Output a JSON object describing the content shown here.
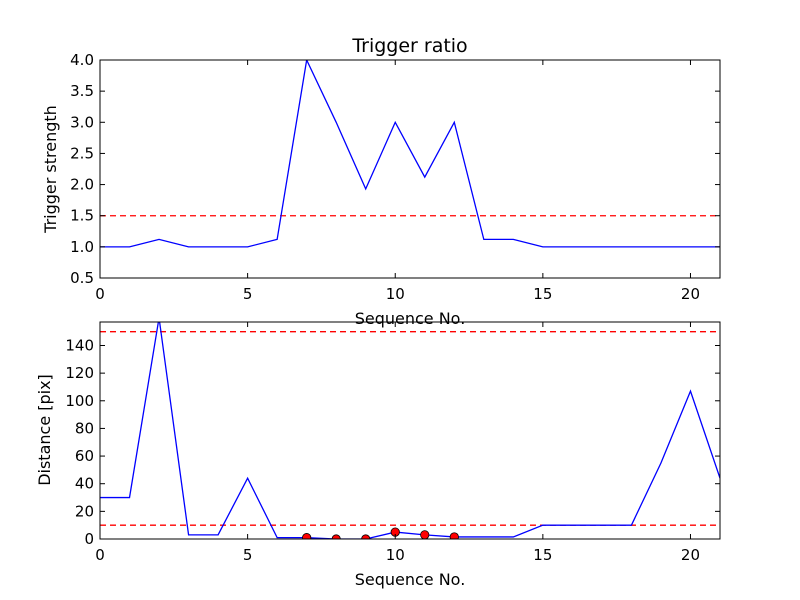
{
  "chart_data": [
    {
      "type": "line",
      "title": "Trigger ratio",
      "xlabel": "Sequence No.",
      "ylabel": "Trigger strength",
      "xlim": [
        0,
        21
      ],
      "ylim": [
        0.5,
        4.0
      ],
      "xticks": [
        0,
        5,
        10,
        15,
        20
      ],
      "yticks": [
        0.5,
        1.0,
        1.5,
        2.0,
        2.5,
        3.0,
        3.5,
        4.0
      ],
      "ytick_labels": [
        "0.5",
        "1.0",
        "1.5",
        "2.0",
        "2.5",
        "3.0",
        "3.5",
        "4.0"
      ],
      "grid": false,
      "colors": {
        "line": "#0000ff",
        "threshold": "#ff0000"
      },
      "series": [
        {
          "x": [
            0,
            1,
            2,
            3,
            4,
            5,
            6,
            7,
            8,
            9,
            10,
            11,
            12,
            13,
            14,
            15,
            16,
            17,
            18,
            19,
            20,
            21
          ],
          "values": [
            1.0,
            1.0,
            1.12,
            1.0,
            1.0,
            1.0,
            1.12,
            4.0,
            3.0,
            1.93,
            3.0,
            2.12,
            3.0,
            1.12,
            1.12,
            1.0,
            1.0,
            1.0,
            1.0,
            1.0,
            1.0,
            1.0
          ]
        }
      ],
      "hlines": [
        1.5
      ]
    },
    {
      "type": "line",
      "title": "",
      "xlabel": "Sequence No.",
      "ylabel": "Distance [pix]",
      "xlim": [
        0,
        21
      ],
      "ylim": [
        0,
        157
      ],
      "xticks": [
        0,
        5,
        10,
        15,
        20
      ],
      "yticks": [
        0,
        20,
        40,
        60,
        80,
        100,
        120,
        140
      ],
      "ytick_labels": [
        "0",
        "20",
        "40",
        "60",
        "80",
        "100",
        "120",
        "140"
      ],
      "grid": false,
      "colors": {
        "line": "#0000ff",
        "threshold": "#ff0000",
        "marker": "#ff0000"
      },
      "series": [
        {
          "x": [
            0,
            1,
            2,
            3,
            4,
            5,
            6,
            7,
            8,
            9,
            10,
            11,
            12,
            13,
            14,
            15,
            16,
            17,
            18,
            19,
            20,
            21
          ],
          "values": [
            30,
            30,
            160,
            3,
            3,
            44,
            1,
            1,
            0,
            0,
            5,
            3,
            1.5,
            1.5,
            1.5,
            10,
            10,
            10,
            10,
            55,
            107,
            44
          ]
        }
      ],
      "markers": {
        "x": [
          7,
          8,
          9,
          10,
          11,
          12
        ],
        "values": [
          1,
          0,
          0,
          5,
          3,
          1.5
        ]
      },
      "hlines": [
        10,
        150
      ]
    }
  ]
}
